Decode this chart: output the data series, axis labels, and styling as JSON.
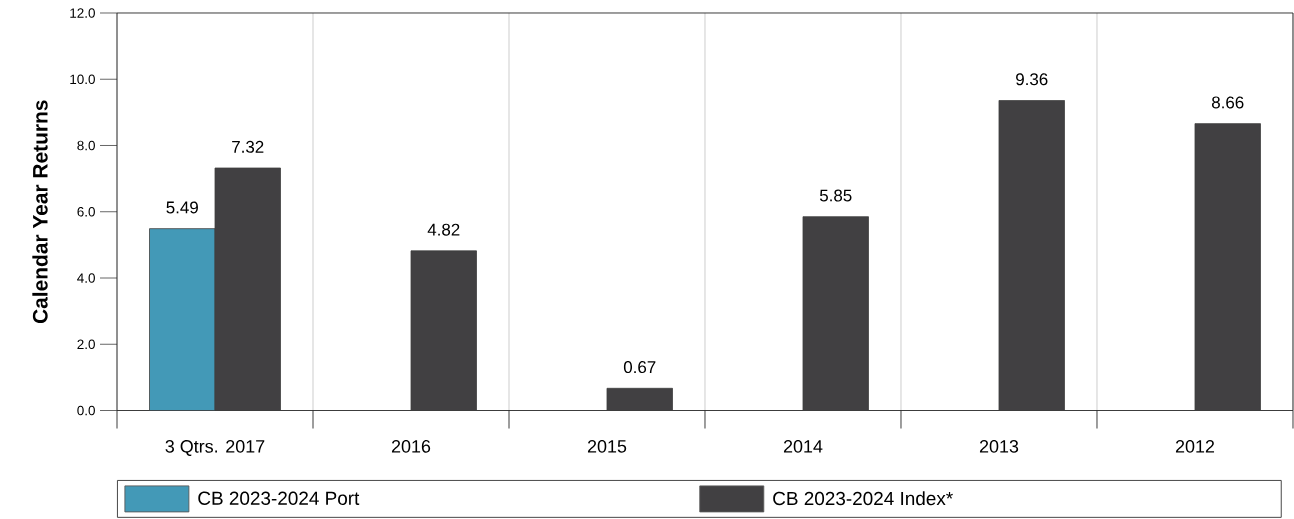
{
  "chart_data": {
    "type": "bar",
    "ylabel": "Calendar Year Returns",
    "categories": [
      "3 Qtrs. 2017",
      "2016",
      "2015",
      "2014",
      "2013",
      "2012"
    ],
    "series": [
      {
        "name": "CB 2023-2024 Port",
        "color": "#4399b7",
        "values": [
          5.49,
          null,
          null,
          null,
          null,
          null
        ]
      },
      {
        "name": "CB 2023-2024 Index*",
        "color": "#414042",
        "values": [
          7.32,
          4.82,
          0.67,
          5.85,
          9.36,
          8.66
        ]
      }
    ],
    "ylim": [
      0,
      12
    ],
    "yticks": [
      {
        "value": 0,
        "label": "0.0"
      },
      {
        "value": 2,
        "label": "2.0"
      },
      {
        "value": 4,
        "label": "4.0"
      },
      {
        "value": 6,
        "label": "6.0"
      },
      {
        "value": 8,
        "label": "8.0"
      },
      {
        "value": 10,
        "label": "10.0"
      },
      {
        "value": 12,
        "label": "12.0"
      }
    ],
    "data_labels": true,
    "grid": "x",
    "legend": "bottom"
  }
}
